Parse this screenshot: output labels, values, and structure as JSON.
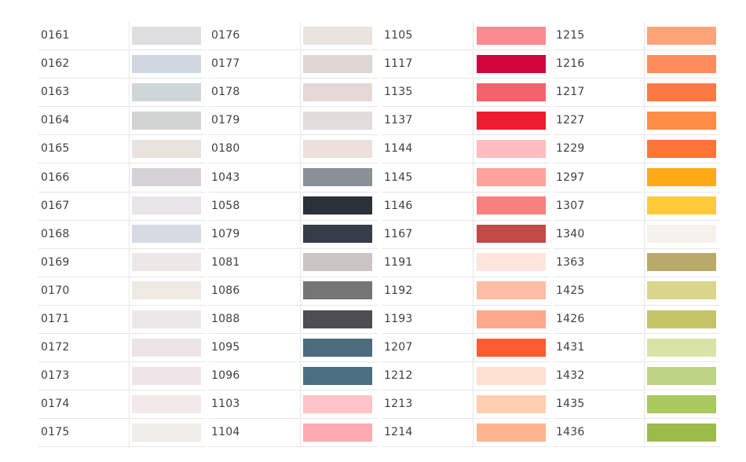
{
  "columns": [
    {
      "items": [
        {
          "code": "0161",
          "color": "#dcdedf"
        },
        {
          "code": "0162",
          "color": "#cfd8e0"
        },
        {
          "code": "0163",
          "color": "#cfd6d9"
        },
        {
          "code": "0164",
          "color": "#d2d4d4"
        },
        {
          "code": "0165",
          "color": "#e8e3de"
        },
        {
          "code": "0166",
          "color": "#d5d3d8"
        },
        {
          "code": "0167",
          "color": "#e7e5e8"
        },
        {
          "code": "0168",
          "color": "#d6dae3"
        },
        {
          "code": "0169",
          "color": "#ede7e8"
        },
        {
          "code": "0170",
          "color": "#efe9e4"
        },
        {
          "code": "0171",
          "color": "#ede7ea"
        },
        {
          "code": "0172",
          "color": "#ece3e7"
        },
        {
          "code": "0173",
          "color": "#efe5e8"
        },
        {
          "code": "0174",
          "color": "#f3e9e9"
        },
        {
          "code": "0175",
          "color": "#f0ece8"
        }
      ]
    },
    {
      "items": [
        {
          "code": "0176",
          "color": "#e9e4df"
        },
        {
          "code": "0177",
          "color": "#e0d6d4"
        },
        {
          "code": "0178",
          "color": "#e4d8d6"
        },
        {
          "code": "0179",
          "color": "#e3dcdc"
        },
        {
          "code": "0180",
          "color": "#ecdfdd"
        },
        {
          "code": "1043",
          "color": "#8b8f96"
        },
        {
          "code": "1058",
          "color": "#2b3138"
        },
        {
          "code": "1079",
          "color": "#353d49"
        },
        {
          "code": "1081",
          "color": "#c9c5c5"
        },
        {
          "code": "1086",
          "color": "#757574"
        },
        {
          "code": "1088",
          "color": "#4e4e50"
        },
        {
          "code": "1095",
          "color": "#4c6b7d"
        },
        {
          "code": "1096",
          "color": "#4b6e84"
        },
        {
          "code": "1103",
          "color": "#ffc2c6"
        },
        {
          "code": "1104",
          "color": "#ffa9b0"
        }
      ]
    },
    {
      "items": [
        {
          "code": "1105",
          "color": "#f98b91"
        },
        {
          "code": "1117",
          "color": "#d0053a"
        },
        {
          "code": "1135",
          "color": "#f3636c"
        },
        {
          "code": "1137",
          "color": "#ed1c2f"
        },
        {
          "code": "1144",
          "color": "#ffbdc0"
        },
        {
          "code": "1145",
          "color": "#ffa39b"
        },
        {
          "code": "1146",
          "color": "#f7817e"
        },
        {
          "code": "1167",
          "color": "#c44a48"
        },
        {
          "code": "1191",
          "color": "#ffe5dc"
        },
        {
          "code": "1192",
          "color": "#ffbca4"
        },
        {
          "code": "1193",
          "color": "#ffa88c"
        },
        {
          "code": "1207",
          "color": "#ff5b30"
        },
        {
          "code": "1212",
          "color": "#ffe0d0"
        },
        {
          "code": "1213",
          "color": "#ffcfb0"
        },
        {
          "code": "1214",
          "color": "#ffb48e"
        }
      ]
    },
    {
      "items": [
        {
          "code": "1215",
          "color": "#ffa478"
        },
        {
          "code": "1216",
          "color": "#ff8c5a"
        },
        {
          "code": "1217",
          "color": "#ff7a42"
        },
        {
          "code": "1227",
          "color": "#ff8d48"
        },
        {
          "code": "1229",
          "color": "#ff7537"
        },
        {
          "code": "1297",
          "color": "#ffaa16"
        },
        {
          "code": "1307",
          "color": "#ffca3a"
        },
        {
          "code": "1340",
          "color": "#f5f1ec"
        },
        {
          "code": "1363",
          "color": "#bba96a"
        },
        {
          "code": "1425",
          "color": "#d8d68a"
        },
        {
          "code": "1426",
          "color": "#c4c467"
        },
        {
          "code": "1431",
          "color": "#d8e3a6"
        },
        {
          "code": "1432",
          "color": "#bed484"
        },
        {
          "code": "1435",
          "color": "#a9c85e"
        },
        {
          "code": "1436",
          "color": "#9bbb4a"
        }
      ]
    }
  ]
}
